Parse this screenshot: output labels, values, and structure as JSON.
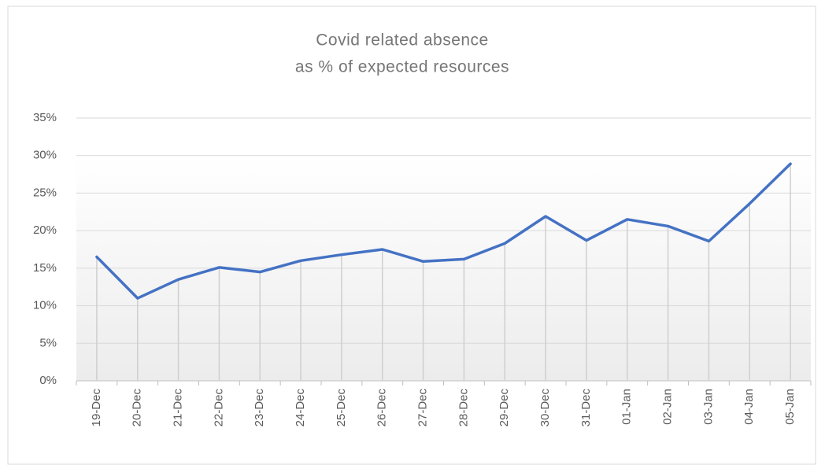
{
  "chart_data": {
    "type": "line",
    "title": [
      "Covid related absence",
      "as % of expected resources"
    ],
    "categories": [
      "19-Dec",
      "20-Dec",
      "21-Dec",
      "22-Dec",
      "23-Dec",
      "24-Dec",
      "25-Dec",
      "26-Dec",
      "27-Dec",
      "28-Dec",
      "29-Dec",
      "30-Dec",
      "31-Dec",
      "01-Jan",
      "02-Jan",
      "03-Jan",
      "04-Jan",
      "05-Jan"
    ],
    "values": [
      16.5,
      11.0,
      13.5,
      15.1,
      14.5,
      16.0,
      16.8,
      17.5,
      15.9,
      16.2,
      18.3,
      21.9,
      18.7,
      21.5,
      20.6,
      18.6,
      23.6,
      28.9
    ],
    "color": "#4472c4",
    "ylim": [
      0,
      35
    ],
    "yticks": [
      {
        "value": 0,
        "label": "0%"
      },
      {
        "value": 5,
        "label": "5%"
      },
      {
        "value": 10,
        "label": "10%"
      },
      {
        "value": 15,
        "label": "15%"
      },
      {
        "value": 20,
        "label": "20%"
      },
      {
        "value": 25,
        "label": "25%"
      },
      {
        "value": 30,
        "label": "30%"
      },
      {
        "value": 35,
        "label": "35%"
      }
    ],
    "grid": true,
    "drop_lines": true
  }
}
